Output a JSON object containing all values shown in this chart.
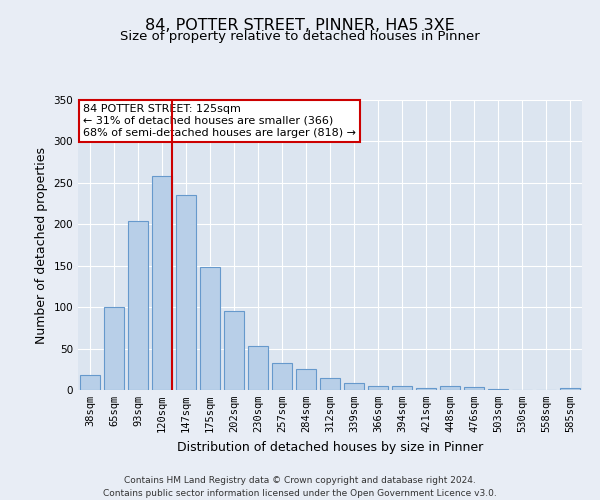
{
  "title": "84, POTTER STREET, PINNER, HA5 3XE",
  "subtitle": "Size of property relative to detached houses in Pinner",
  "xlabel": "Distribution of detached houses by size in Pinner",
  "ylabel": "Number of detached properties",
  "categories": [
    "38sqm",
    "65sqm",
    "93sqm",
    "120sqm",
    "147sqm",
    "175sqm",
    "202sqm",
    "230sqm",
    "257sqm",
    "284sqm",
    "312sqm",
    "339sqm",
    "366sqm",
    "394sqm",
    "421sqm",
    "448sqm",
    "476sqm",
    "503sqm",
    "530sqm",
    "558sqm",
    "585sqm"
  ],
  "bar_heights": [
    18,
    100,
    204,
    258,
    235,
    148,
    95,
    53,
    33,
    25,
    14,
    8,
    5,
    5,
    2,
    5,
    4,
    1,
    0,
    0,
    2
  ],
  "bar_color": "#b8cfe8",
  "bar_edge_color": "#6699cc",
  "background_color": "#e8edf5",
  "plot_bg_color": "#dce5f0",
  "grid_color": "#ffffff",
  "ylim": [
    0,
    350
  ],
  "yticks": [
    0,
    50,
    100,
    150,
    200,
    250,
    300,
    350
  ],
  "vline_index": 3,
  "vline_color": "#cc0000",
  "annotation_title": "84 POTTER STREET: 125sqm",
  "annotation_line1": "← 31% of detached houses are smaller (366)",
  "annotation_line2": "68% of semi-detached houses are larger (818) →",
  "annotation_box_color": "#cc0000",
  "footer_line1": "Contains HM Land Registry data © Crown copyright and database right 2024.",
  "footer_line2": "Contains public sector information licensed under the Open Government Licence v3.0.",
  "title_fontsize": 11.5,
  "subtitle_fontsize": 9.5,
  "ylabel_fontsize": 9,
  "xlabel_fontsize": 9,
  "tick_fontsize": 7.5,
  "annotation_fontsize": 8,
  "footer_fontsize": 6.5
}
